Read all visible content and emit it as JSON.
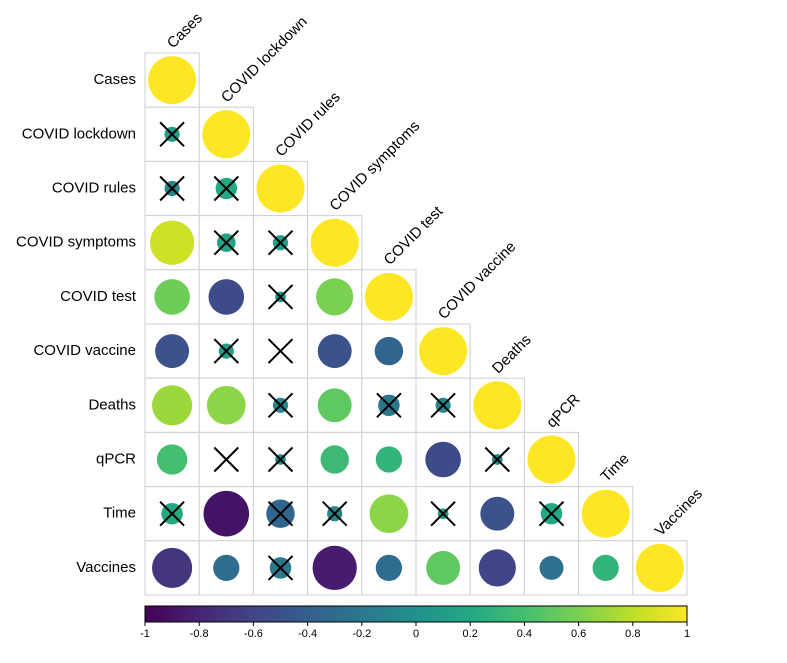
{
  "chart_data": {
    "type": "heatmap",
    "subtype": "lower-triangular correlation matrix with circle glyphs",
    "variables": [
      "Cases",
      "COVID lockdown",
      "COVID rules",
      "COVID symptoms",
      "COVID test",
      "COVID vaccine",
      "Deaths",
      "qPCR",
      "Time",
      "Vaccines"
    ],
    "value_range": [
      -1,
      1
    ],
    "colorscale": "viridis",
    "colorbar": {
      "orientation": "horizontal",
      "placement": "bottom",
      "ticks": [
        -1,
        -0.8,
        -0.6,
        -0.4,
        -0.2,
        0,
        0.2,
        0.4,
        0.6,
        0.8,
        1
      ],
      "tick_labels": [
        "-1",
        "-0.8",
        "-0.6",
        "-0.4",
        "-0.2",
        "0",
        "0.2",
        "0.4",
        "0.6",
        "0.8",
        "1"
      ]
    },
    "note": "circle size and colour encode the correlation; an X marks non-significant correlations",
    "cells": [
      {
        "row": "Cases",
        "col": "Cases",
        "r": 1.0,
        "x": false
      },
      {
        "row": "COVID lockdown",
        "col": "Cases",
        "r": 0.1,
        "x": true
      },
      {
        "row": "COVID lockdown",
        "col": "COVID lockdown",
        "r": 1.0,
        "x": false
      },
      {
        "row": "COVID rules",
        "col": "Cases",
        "r": -0.1,
        "x": true
      },
      {
        "row": "COVID rules",
        "col": "COVID lockdown",
        "r": 0.2,
        "x": true
      },
      {
        "row": "COVID rules",
        "col": "COVID rules",
        "r": 1.0,
        "x": false
      },
      {
        "row": "COVID symptoms",
        "col": "Cases",
        "r": 0.85,
        "x": false
      },
      {
        "row": "COVID symptoms",
        "col": "COVID lockdown",
        "r": 0.15,
        "x": true
      },
      {
        "row": "COVID symptoms",
        "col": "COVID rules",
        "r": 0.1,
        "x": true
      },
      {
        "row": "COVID symptoms",
        "col": "COVID symptoms",
        "r": 1.0,
        "x": false
      },
      {
        "row": "COVID test",
        "col": "Cases",
        "r": 0.55,
        "x": false
      },
      {
        "row": "COVID test",
        "col": "COVID lockdown",
        "r": -0.55,
        "x": false
      },
      {
        "row": "COVID test",
        "col": "COVID rules",
        "r": 0.05,
        "x": true
      },
      {
        "row": "COVID test",
        "col": "COVID symptoms",
        "r": 0.6,
        "x": false
      },
      {
        "row": "COVID test",
        "col": "COVID test",
        "r": 1.0,
        "x": false
      },
      {
        "row": "COVID vaccine",
        "col": "Cases",
        "r": -0.5,
        "x": false
      },
      {
        "row": "COVID vaccine",
        "col": "COVID lockdown",
        "r": 0.1,
        "x": true
      },
      {
        "row": "COVID vaccine",
        "col": "COVID rules",
        "r": 0.0,
        "x": true
      },
      {
        "row": "COVID vaccine",
        "col": "COVID symptoms",
        "r": -0.5,
        "x": false
      },
      {
        "row": "COVID vaccine",
        "col": "COVID test",
        "r": -0.35,
        "x": false
      },
      {
        "row": "COVID vaccine",
        "col": "COVID vaccine",
        "r": 1.0,
        "x": false
      },
      {
        "row": "Deaths",
        "col": "Cases",
        "r": 0.7,
        "x": false
      },
      {
        "row": "Deaths",
        "col": "COVID lockdown",
        "r": 0.65,
        "x": false
      },
      {
        "row": "Deaths",
        "col": "COVID rules",
        "r": -0.1,
        "x": true
      },
      {
        "row": "Deaths",
        "col": "COVID symptoms",
        "r": 0.5,
        "x": false
      },
      {
        "row": "Deaths",
        "col": "COVID test",
        "r": -0.2,
        "x": true
      },
      {
        "row": "Deaths",
        "col": "COVID vaccine",
        "r": -0.1,
        "x": true
      },
      {
        "row": "Deaths",
        "col": "Deaths",
        "r": 1.0,
        "x": false
      },
      {
        "row": "qPCR",
        "col": "Cases",
        "r": 0.4,
        "x": false
      },
      {
        "row": "qPCR",
        "col": "COVID lockdown",
        "r": 0.0,
        "x": true
      },
      {
        "row": "qPCR",
        "col": "COVID rules",
        "r": -0.05,
        "x": true
      },
      {
        "row": "qPCR",
        "col": "COVID symptoms",
        "r": 0.35,
        "x": false
      },
      {
        "row": "qPCR",
        "col": "COVID test",
        "r": 0.3,
        "x": false
      },
      {
        "row": "qPCR",
        "col": "COVID vaccine",
        "r": -0.55,
        "x": false
      },
      {
        "row": "qPCR",
        "col": "Deaths",
        "r": -0.05,
        "x": true
      },
      {
        "row": "qPCR",
        "col": "qPCR",
        "r": 1.0,
        "x": false
      },
      {
        "row": "Time",
        "col": "Cases",
        "r": 0.2,
        "x": true
      },
      {
        "row": "Time",
        "col": "COVID lockdown",
        "r": -0.9,
        "x": false
      },
      {
        "row": "Time",
        "col": "COVID rules",
        "r": -0.35,
        "x": true
      },
      {
        "row": "Time",
        "col": "COVID symptoms",
        "r": -0.1,
        "x": true
      },
      {
        "row": "Time",
        "col": "COVID test",
        "r": 0.65,
        "x": false
      },
      {
        "row": "Time",
        "col": "COVID vaccine",
        "r": 0.05,
        "x": true
      },
      {
        "row": "Time",
        "col": "Deaths",
        "r": -0.5,
        "x": false
      },
      {
        "row": "Time",
        "col": "qPCR",
        "r": 0.2,
        "x": true
      },
      {
        "row": "Time",
        "col": "Time",
        "r": 1.0,
        "x": false
      },
      {
        "row": "Vaccines",
        "col": "Cases",
        "r": -0.7,
        "x": false
      },
      {
        "row": "Vaccines",
        "col": "COVID lockdown",
        "r": -0.3,
        "x": false
      },
      {
        "row": "Vaccines",
        "col": "COVID rules",
        "r": -0.2,
        "x": true
      },
      {
        "row": "Vaccines",
        "col": "COVID symptoms",
        "r": -0.85,
        "x": false
      },
      {
        "row": "Vaccines",
        "col": "COVID test",
        "r": -0.3,
        "x": false
      },
      {
        "row": "Vaccines",
        "col": "COVID vaccine",
        "r": 0.5,
        "x": false
      },
      {
        "row": "Vaccines",
        "col": "Deaths",
        "r": -0.6,
        "x": false
      },
      {
        "row": "Vaccines",
        "col": "qPCR",
        "r": -0.25,
        "x": false
      },
      {
        "row": "Vaccines",
        "col": "Time",
        "r": 0.3,
        "x": false
      },
      {
        "row": "Vaccines",
        "col": "Vaccines",
        "r": 1.0,
        "x": false
      }
    ]
  }
}
